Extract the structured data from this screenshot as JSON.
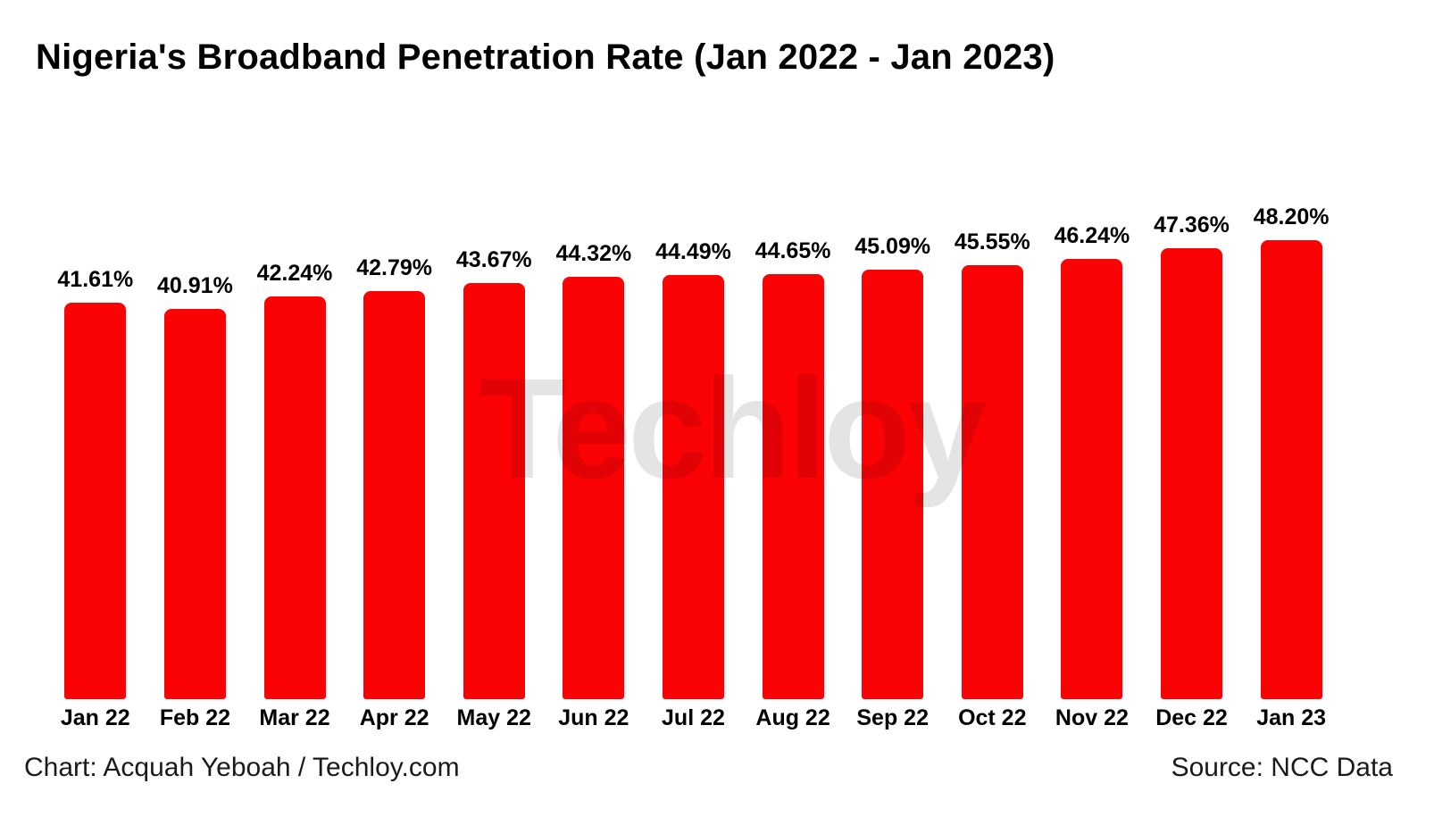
{
  "title": "Nigeria's Broadband Penetration Rate (Jan 2022 - Jan 2023)",
  "watermark": {
    "text": "Techloy",
    "dot": "."
  },
  "footer": {
    "credit": "Chart: Acquah Yeboah / Techloy.com",
    "source": "Source: NCC Data"
  },
  "colors": {
    "bar": "#FB0205",
    "text": "#000000"
  },
  "chart_data": {
    "type": "bar",
    "title": "Nigeria's Broadband Penetration Rate (Jan 2022 - Jan 2023)",
    "categories": [
      "Jan 22",
      "Feb 22",
      "Mar 22",
      "Apr 22",
      "May 22",
      "Jun 22",
      "Jul 22",
      "Aug 22",
      "Sep 22",
      "Oct 22",
      "Nov 22",
      "Dec 22",
      "Jan 23"
    ],
    "values": [
      41.61,
      40.91,
      42.24,
      42.79,
      43.67,
      44.32,
      44.49,
      44.65,
      45.09,
      45.55,
      46.24,
      47.36,
      48.2
    ],
    "labels": [
      "41.61%",
      "40.91%",
      "42.24%",
      "42.79%",
      "43.67%",
      "44.32%",
      "44.49%",
      "44.65%",
      "45.09%",
      "45.55%",
      "46.24%",
      "47.36%",
      "48.20%"
    ],
    "xlabel": "",
    "ylabel": "",
    "ylim": [
      0,
      50
    ],
    "bar_color": "#FB0205",
    "grid": false,
    "legend": "none",
    "value_labels_position": "above-bars",
    "axis_lines": "none"
  }
}
